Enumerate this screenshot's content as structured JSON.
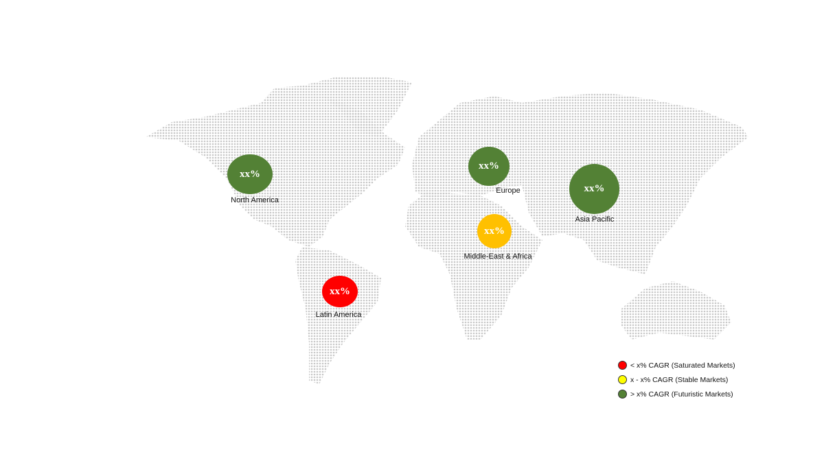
{
  "regions": [
    {
      "name": "North America",
      "value": "xx%",
      "color": "#538135"
    },
    {
      "name": "Europe",
      "value": "xx%",
      "color": "#538135"
    },
    {
      "name": "Asia Pacific",
      "value": "xx%",
      "color": "#538135"
    },
    {
      "name": "Middle-East & Africa",
      "value": "xx%",
      "color": "#ffc000"
    },
    {
      "name": "Latin America",
      "value": "xx%",
      "color": "#ff0000"
    }
  ],
  "legend": [
    {
      "label": "< x% CAGR (Saturated Markets)",
      "color": "#ff0000"
    },
    {
      "label": "x - x% CAGR (Stable Markets)",
      "color": "#ffff00"
    },
    {
      "label": "> x% CAGR (Futuristic Markets)",
      "color": "#538135"
    }
  ],
  "map_dot_color": "#c8c8c8"
}
